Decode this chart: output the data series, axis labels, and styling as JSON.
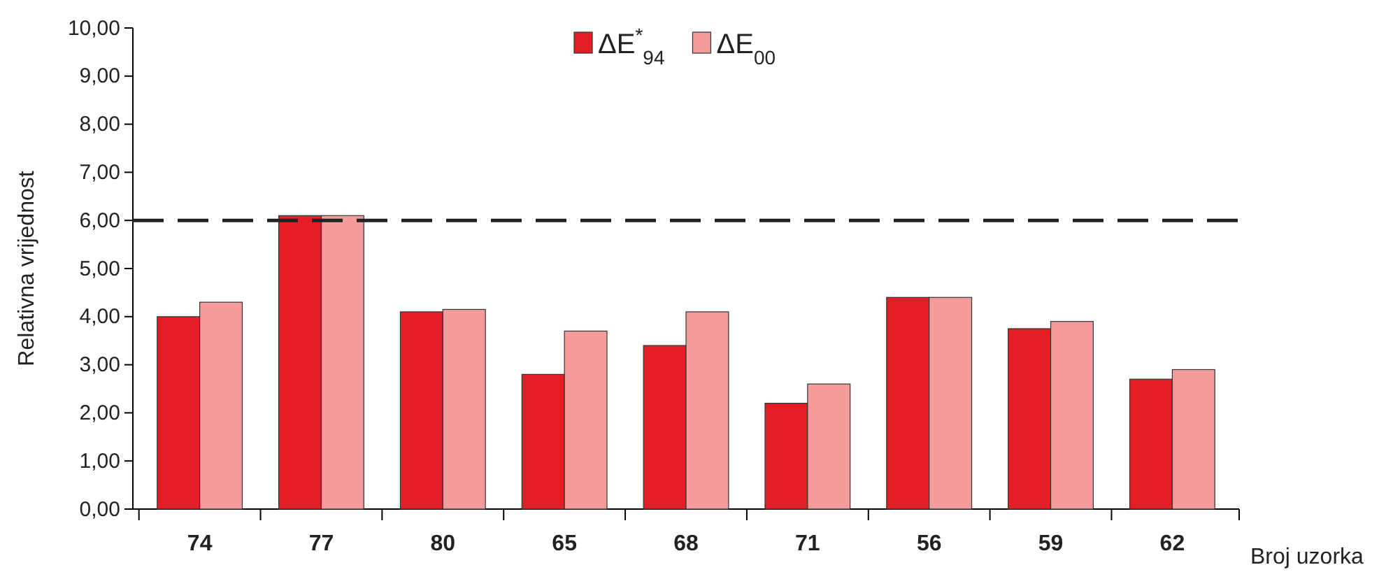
{
  "chart_data": {
    "type": "bar",
    "xlabel": "Broj uzorka",
    "ylabel": "Relativna vrijednost",
    "categories": [
      "74",
      "77",
      "80",
      "65",
      "68",
      "71",
      "56",
      "59",
      "62"
    ],
    "series": [
      {
        "name": "ΔE$^{*}$$_{94}$",
        "color": "#e31e24",
        "values": [
          4.0,
          6.1,
          4.1,
          2.8,
          3.4,
          2.2,
          4.4,
          3.75,
          2.7
        ]
      },
      {
        "name": "ΔE$_{00}$",
        "color": "#f49c9c",
        "values": [
          4.3,
          6.1,
          4.15,
          3.7,
          4.1,
          2.6,
          4.4,
          3.9,
          2.9
        ]
      }
    ],
    "ylim": [
      0,
      10
    ],
    "yticks": [
      {
        "value": 0,
        "label": "0,00"
      },
      {
        "value": 1,
        "label": "1,00"
      },
      {
        "value": 2,
        "label": "2,00"
      },
      {
        "value": 3,
        "label": "3,00"
      },
      {
        "value": 4,
        "label": "4,00"
      },
      {
        "value": 5,
        "label": "5,00"
      },
      {
        "value": 6,
        "label": "6,00"
      },
      {
        "value": 7,
        "label": "7,00"
      },
      {
        "value": 8,
        "label": "8,00"
      },
      {
        "value": 9,
        "label": "9,00"
      },
      {
        "value": 10,
        "label": "10,00"
      }
    ],
    "ref_lines": [
      {
        "axis": "y",
        "value": 6,
        "line_style": "dashed",
        "color": "#222222"
      }
    ],
    "legend": "top",
    "grid": false
  }
}
